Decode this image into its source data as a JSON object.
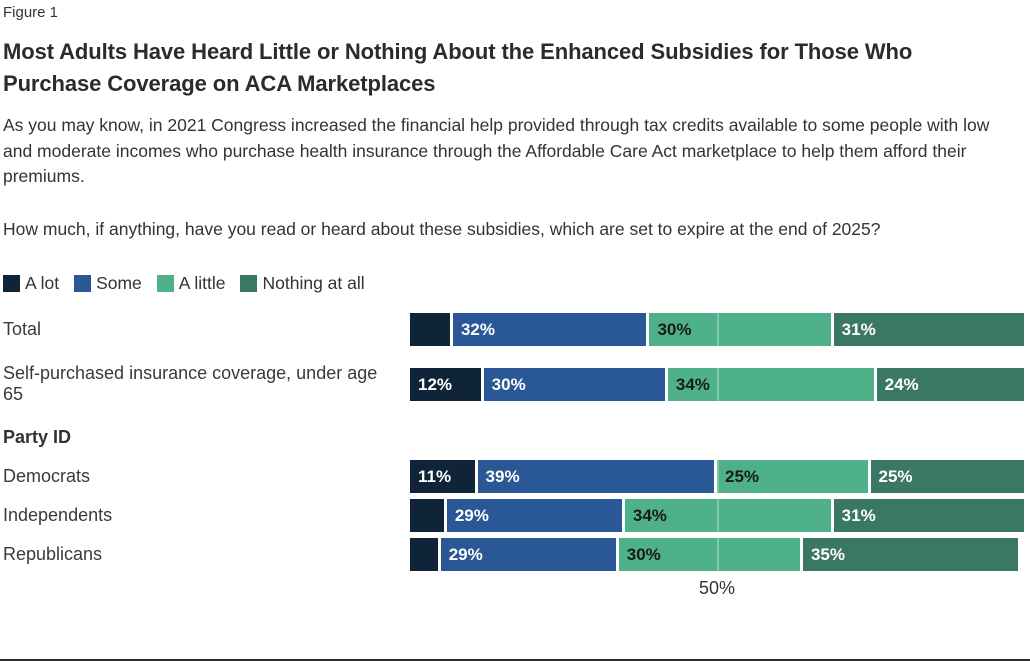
{
  "figure_label": "Figure 1",
  "title": "Most Adults Have Heard Little or Nothing About the Enhanced Subsidies for Those Who Purchase Coverage on ACA Marketplaces",
  "description": "As you may know, in 2021 Congress increased the financial help provided through tax credits available to some people with low and moderate incomes who purchase health insurance through the Affordable Care Act marketplace to help them afford their premiums.",
  "question": "How much, if anything, have you read or heard about these subsidies, which are set to expire at the end of 2025?",
  "colors": {
    "a_lot": "#0f2438",
    "some": "#2a5795",
    "a_little": "#4fb189",
    "nothing_at_all": "#3b7765",
    "text": "#333333"
  },
  "chart_data": {
    "type": "bar",
    "variant": "horizontal-stacked-100pct",
    "unit": "percent",
    "title": "Most Adults Have Heard Little or Nothing About the Enhanced Subsidies for Those Who Purchase Coverage on ACA Marketplaces",
    "legend_position": "top-left",
    "series": [
      "A lot",
      "Some",
      "A little",
      "Nothing at all"
    ],
    "series_colors": [
      "#0f2438",
      "#2a5795",
      "#4fb189",
      "#3b7765"
    ],
    "series_label_text_colors": [
      "#ffffff",
      "#ffffff",
      "#1a1a1a",
      "#ffffff"
    ],
    "rows": [
      {
        "label": "Total",
        "values": [
          7,
          32,
          30,
          31
        ],
        "display_labels": [
          "",
          "32%",
          "30%",
          "31%"
        ]
      },
      {
        "label": "Self-purchased insurance coverage, under age 65",
        "values": [
          12,
          30,
          34,
          24
        ],
        "display_labels": [
          "12%",
          "30%",
          "34%",
          "24%"
        ]
      },
      {
        "section_header": "Party ID"
      },
      {
        "label": "Democrats",
        "values": [
          11,
          39,
          25,
          25
        ],
        "display_labels": [
          "11%",
          "39%",
          "25%",
          "25%"
        ]
      },
      {
        "label": "Independents",
        "values": [
          6,
          29,
          34,
          31
        ],
        "display_labels": [
          "",
          "29%",
          "34%",
          "31%"
        ]
      },
      {
        "label": "Republicans",
        "values": [
          5,
          29,
          30,
          35
        ],
        "display_labels": [
          "",
          "29%",
          "30%",
          "35%"
        ]
      }
    ],
    "x_axis": {
      "range": [
        0,
        100
      ],
      "tick_label": "50%",
      "tick_value": 50,
      "gridline_at": 50,
      "grid": "single-line-over-bars"
    }
  }
}
